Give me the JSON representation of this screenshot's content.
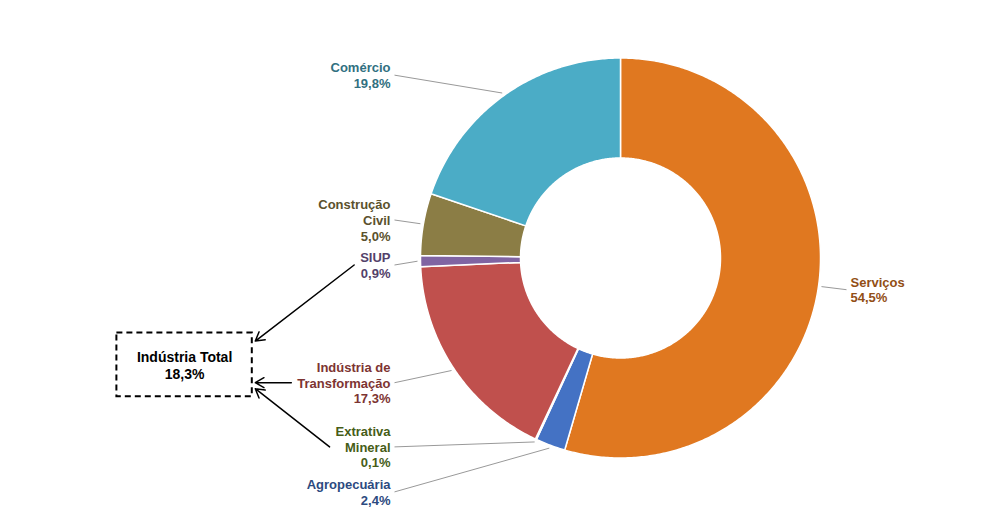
{
  "chart_data": {
    "type": "donut",
    "categories": [
      "Serviços",
      "Agropecuária",
      "Extrativa Mineral",
      "Indústria de Transformação",
      "SIUP",
      "Construção Civil",
      "Comércio"
    ],
    "values": [
      54.5,
      2.4,
      0.1,
      17.3,
      0.9,
      5.0,
      19.8
    ],
    "value_labels": [
      "54,5%",
      "2,4%",
      "0,1%",
      "17,3%",
      "0,9%",
      "5,0%",
      "19,8%"
    ],
    "colors": [
      "#E07820",
      "#4472C4",
      "#6B8E23",
      "#C0504D",
      "#8064A2",
      "#8B7D45",
      "#4BACC6"
    ],
    "data_labels": true,
    "annotations": [
      {
        "text": "Indústria Total\n18,3%",
        "categories": [
          "Extrativa Mineral",
          "Indústria de Transformação",
          "SIUP"
        ]
      }
    ]
  }
}
